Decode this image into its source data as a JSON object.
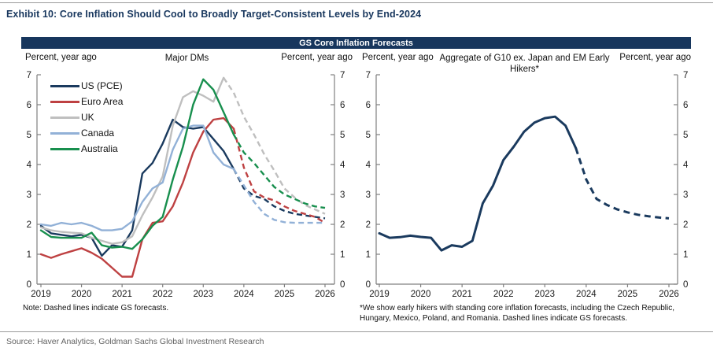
{
  "header": {
    "title": "Exhibit 10: Core Inflation Should Cool to Broadly Target-Consistent Levels by End-2024",
    "band_title": "GS Core Inflation Forecasts"
  },
  "footer": {
    "source": "Source: Haver Analytics, Goldman Sachs Global Investment Research"
  },
  "colors": {
    "band_navy": "#17365D",
    "axis": "#808080",
    "tick_text": "#1a1a1a",
    "us_navy": "#1A3A5E",
    "euro_red": "#BE4142",
    "uk_gray": "#BFBFBF",
    "canada_blue": "#92B1D7",
    "australia_green": "#188F4E"
  },
  "chart_data": [
    {
      "type": "line",
      "title": "Major DMs",
      "ylabel_left": "Percent, year ago",
      "ylabel_right": "Percent, year ago",
      "note": "Note: Dashed lines indicate GS forecasts.",
      "legend_position": "top-left",
      "grid": false,
      "ylim": [
        0,
        7
      ],
      "y_ticks": [
        0,
        1,
        2,
        3,
        4,
        5,
        6,
        7
      ],
      "x_ticks": [
        2019,
        2020,
        2021,
        2022,
        2023,
        2024,
        2025,
        2026
      ],
      "x_start": 2019,
      "x_step": 0.25,
      "dashed_meaning": "GS forecast",
      "series": [
        {
          "name": "US (PCE)",
          "color_key": "us_navy",
          "solid_until": 19,
          "values": [
            1.95,
            1.7,
            1.65,
            1.6,
            1.65,
            1.55,
            0.95,
            1.3,
            1.25,
            1.8,
            3.7,
            4.05,
            4.7,
            5.5,
            5.25,
            5.2,
            5.25,
            4.85,
            4.45,
            3.85,
            3.2,
            2.95,
            2.85,
            2.6,
            2.45,
            2.35,
            2.3,
            2.25,
            2.2
          ]
        },
        {
          "name": "Euro Area",
          "color_key": "euro_red",
          "solid_until": 19,
          "values": [
            1.0,
            0.88,
            1.0,
            1.1,
            1.2,
            1.05,
            0.85,
            0.55,
            0.25,
            0.25,
            1.5,
            2.05,
            2.1,
            2.6,
            3.4,
            4.4,
            5.1,
            5.5,
            5.55,
            5.2,
            3.9,
            3.1,
            2.9,
            2.8,
            2.6,
            2.45,
            2.35,
            2.25,
            2.05
          ]
        },
        {
          "name": "UK",
          "color_key": "uk_gray",
          "solid_until": 18,
          "values": [
            1.9,
            1.8,
            1.75,
            1.72,
            1.7,
            1.55,
            1.45,
            1.35,
            1.4,
            1.6,
            2.3,
            2.9,
            3.6,
            5.3,
            6.25,
            6.45,
            6.3,
            6.1,
            6.9,
            6.4,
            5.6,
            5.0,
            4.35,
            3.8,
            3.2,
            2.9,
            2.65,
            2.5,
            2.35
          ]
        },
        {
          "name": "Canada",
          "color_key": "canada_blue",
          "solid_until": 19,
          "values": [
            2.0,
            1.95,
            2.05,
            2.0,
            2.05,
            1.95,
            1.8,
            1.8,
            1.85,
            2.1,
            2.75,
            3.2,
            3.4,
            4.5,
            5.2,
            5.3,
            5.3,
            4.4,
            4.0,
            3.85,
            3.3,
            2.75,
            2.35,
            2.15,
            2.07,
            2.05,
            2.05,
            2.05,
            2.05
          ]
        },
        {
          "name": "Australia",
          "color_key": "australia_green",
          "solid_until": 19,
          "values": [
            1.8,
            1.58,
            1.55,
            1.55,
            1.55,
            1.72,
            1.3,
            1.22,
            1.25,
            1.18,
            1.5,
            1.95,
            2.25,
            3.5,
            4.6,
            6.0,
            6.85,
            6.5,
            5.75,
            5.0,
            4.4,
            4.05,
            3.65,
            3.25,
            3.0,
            2.85,
            2.7,
            2.6,
            2.55
          ]
        }
      ]
    },
    {
      "type": "line",
      "title": "Aggregate of G10 ex. Japan and EM Early Hikers*",
      "ylabel_left": "Percent, year ago",
      "ylabel_right": "Percent, year ago",
      "note": "*We show early hikers with standing core inflation forecasts, including the Czech Republic, Hungary, Mexico, Poland, and Romania. Dashed lines indicate GS forecasts.",
      "legend_position": "none",
      "grid": false,
      "ylim": [
        0,
        7
      ],
      "y_ticks": [
        0,
        1,
        2,
        3,
        4,
        5,
        6,
        7
      ],
      "x_ticks": [
        2019,
        2020,
        2021,
        2022,
        2023,
        2024,
        2025,
        2026
      ],
      "x_start": 2019,
      "x_step": 0.25,
      "dashed_meaning": "GS forecast",
      "series": [
        {
          "name": "Aggregate of G10 ex. Japan and EM Early Hikers",
          "color_key": "us_navy",
          "solid_until": 19,
          "values": [
            1.7,
            1.55,
            1.57,
            1.62,
            1.58,
            1.55,
            1.13,
            1.3,
            1.25,
            1.45,
            2.7,
            3.3,
            4.15,
            4.6,
            5.1,
            5.4,
            5.55,
            5.6,
            5.3,
            4.55,
            3.5,
            2.85,
            2.65,
            2.5,
            2.4,
            2.32,
            2.27,
            2.23,
            2.2
          ]
        }
      ]
    }
  ]
}
